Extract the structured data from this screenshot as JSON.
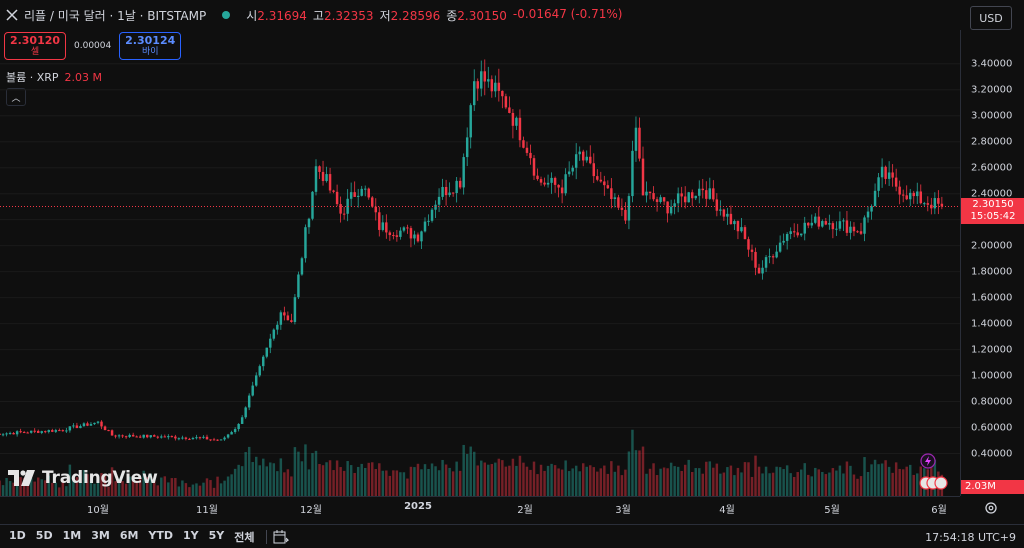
{
  "header": {
    "title": "리플 / 미국 달러 · 1날 · BITSTAMP",
    "ohlc": [
      {
        "label": "시",
        "value": "2.31694"
      },
      {
        "label": "고",
        "value": "2.32353"
      },
      {
        "label": "저",
        "value": "2.28596"
      },
      {
        "label": "종",
        "value": "2.30150"
      }
    ],
    "change": "-0.01647 (-0.71%)",
    "currency": "USD"
  },
  "trade": {
    "sell_price": "2.30120",
    "sell_label": "셀",
    "spread": "0.00004",
    "buy_price": "2.30124",
    "buy_label": "바이"
  },
  "volume_legend": {
    "label": "볼륨 · XRP",
    "value": "2.03 M"
  },
  "price_tag": {
    "price": "2.30150",
    "countdown": "15:05:42"
  },
  "volume_tag": "2.03M",
  "logo_text": "TradingView",
  "range_buttons": [
    "1D",
    "5D",
    "1M",
    "3M",
    "6M",
    "YTD",
    "1Y",
    "5Y",
    "전체"
  ],
  "clock": "17:54:18 UTC+9",
  "colors": {
    "up": "#26a69a",
    "down": "#f23645",
    "background": "#0f0f0f"
  },
  "chart_data": {
    "type": "candlestick",
    "title": "리플 / 미국 달러 · 1날 · BITSTAMP",
    "ylim": [
      0.3,
      3.5
    ],
    "yticks": [
      "3.40000",
      "3.20000",
      "3.00000",
      "2.80000",
      "2.60000",
      "2.40000",
      "2.20000",
      "2.00000",
      "1.80000",
      "1.60000",
      "1.40000",
      "1.20000",
      "1.00000",
      "0.80000",
      "0.60000",
      "0.40000"
    ],
    "xticks": [
      {
        "label": "10월",
        "bold": false
      },
      {
        "label": "11월",
        "bold": false
      },
      {
        "label": "12월",
        "bold": false
      },
      {
        "label": "2025",
        "bold": true
      },
      {
        "label": "2월",
        "bold": false
      },
      {
        "label": "3월",
        "bold": false
      },
      {
        "label": "4월",
        "bold": false
      },
      {
        "label": "5월",
        "bold": false
      },
      {
        "label": "6월",
        "bold": false
      }
    ],
    "last_price": 2.3015,
    "anchors": [
      {
        "date": "2024-09-01",
        "close": 0.55
      },
      {
        "date": "2024-09-20",
        "close": 0.58
      },
      {
        "date": "2024-10-01",
        "close": 0.64
      },
      {
        "date": "2024-10-05",
        "close": 0.54
      },
      {
        "date": "2024-10-30",
        "close": 0.52
      },
      {
        "date": "2024-11-05",
        "close": 0.5
      },
      {
        "date": "2024-11-10",
        "close": 0.62
      },
      {
        "date": "2024-11-16",
        "close": 1.05
      },
      {
        "date": "2024-11-22",
        "close": 1.5
      },
      {
        "date": "2024-11-25",
        "close": 1.42
      },
      {
        "date": "2024-12-02",
        "close": 2.6
      },
      {
        "date": "2024-12-04",
        "close": 2.55
      },
      {
        "date": "2024-12-09",
        "close": 2.25
      },
      {
        "date": "2024-12-15",
        "close": 2.48
      },
      {
        "date": "2024-12-20",
        "close": 2.15
      },
      {
        "date": "2024-12-31",
        "close": 2.08
      },
      {
        "date": "2025-01-06",
        "close": 2.4
      },
      {
        "date": "2025-01-12",
        "close": 2.5
      },
      {
        "date": "2025-01-16",
        "close": 3.28
      },
      {
        "date": "2025-01-18",
        "close": 3.3
      },
      {
        "date": "2025-01-25",
        "close": 3.1
      },
      {
        "date": "2025-02-01",
        "close": 2.7
      },
      {
        "date": "2025-02-03",
        "close": 2.5
      },
      {
        "date": "2025-02-10",
        "close": 2.45
      },
      {
        "date": "2025-02-15",
        "close": 2.7
      },
      {
        "date": "2025-02-28",
        "close": 2.2
      },
      {
        "date": "2025-03-03",
        "close": 2.9
      },
      {
        "date": "2025-03-05",
        "close": 2.4
      },
      {
        "date": "2025-03-12",
        "close": 2.3
      },
      {
        "date": "2025-03-22",
        "close": 2.45
      },
      {
        "date": "2025-04-02",
        "close": 2.1
      },
      {
        "date": "2025-04-07",
        "close": 1.8
      },
      {
        "date": "2025-04-15",
        "close": 2.1
      },
      {
        "date": "2025-04-25",
        "close": 2.2
      },
      {
        "date": "2025-05-06",
        "close": 2.12
      },
      {
        "date": "2025-05-12",
        "close": 2.55
      },
      {
        "date": "2025-05-20",
        "close": 2.38
      },
      {
        "date": "2025-05-29",
        "close": 2.3
      }
    ]
  }
}
